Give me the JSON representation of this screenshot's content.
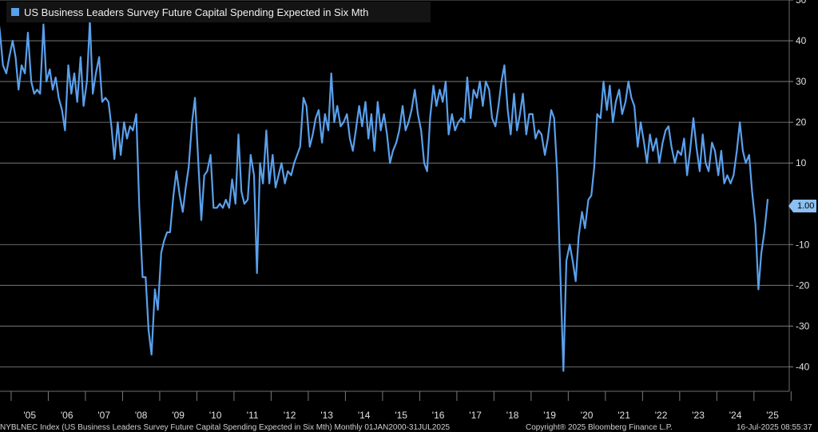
{
  "chart_data": {
    "type": "line",
    "title": "US Business Leaders Survey Future Capital Spending Expected in Six Mth",
    "xlabel": "",
    "ylabel": "",
    "x_tick_labels": [
      "'05",
      "'06",
      "'07",
      "'08",
      "'09",
      "'10",
      "'11",
      "'12",
      "'13",
      "'14",
      "'15",
      "'16",
      "'17",
      "'18",
      "'19",
      "'20",
      "'21",
      "'22",
      "'23",
      "'24",
      "'25"
    ],
    "y_ticks": [
      50,
      40,
      30,
      20,
      10,
      -10,
      -20,
      -30,
      -40
    ],
    "ylim": [
      -46,
      50
    ],
    "xlim": [
      2004.7,
      2025.95
    ],
    "grid": true,
    "legend_position": "top-left",
    "series": [
      {
        "name": "US Business Leaders Survey Future Capital Spending Expected in Six Mth",
        "color": "#5aa0ec",
        "last_value_label": "1.00",
        "points": [
          [
            2004.62,
            48
          ],
          [
            2004.7,
            42
          ],
          [
            2004.78,
            34
          ],
          [
            2004.87,
            32
          ],
          [
            2004.95,
            36
          ],
          [
            2005.04,
            40
          ],
          [
            2005.12,
            36
          ],
          [
            2005.2,
            28
          ],
          [
            2005.28,
            34
          ],
          [
            2005.37,
            32
          ],
          [
            2005.45,
            42
          ],
          [
            2005.54,
            30
          ],
          [
            2005.62,
            27
          ],
          [
            2005.7,
            28
          ],
          [
            2005.78,
            27
          ],
          [
            2005.87,
            44
          ],
          [
            2005.95,
            30
          ],
          [
            2006.04,
            33
          ],
          [
            2006.12,
            28
          ],
          [
            2006.2,
            31
          ],
          [
            2006.28,
            26
          ],
          [
            2006.37,
            23
          ],
          [
            2006.45,
            18
          ],
          [
            2006.54,
            34
          ],
          [
            2006.62,
            27
          ],
          [
            2006.7,
            32
          ],
          [
            2006.78,
            25
          ],
          [
            2006.87,
            36
          ],
          [
            2006.95,
            24
          ],
          [
            2007.04,
            30
          ],
          [
            2007.12,
            45
          ],
          [
            2007.2,
            27
          ],
          [
            2007.28,
            32
          ],
          [
            2007.37,
            36
          ],
          [
            2007.45,
            25
          ],
          [
            2007.54,
            26
          ],
          [
            2007.62,
            25
          ],
          [
            2007.7,
            19
          ],
          [
            2007.78,
            11
          ],
          [
            2007.87,
            20
          ],
          [
            2007.95,
            12
          ],
          [
            2008.04,
            20
          ],
          [
            2008.12,
            16
          ],
          [
            2008.2,
            19
          ],
          [
            2008.28,
            18
          ],
          [
            2008.37,
            22
          ],
          [
            2008.45,
            -1
          ],
          [
            2008.54,
            -18
          ],
          [
            2008.62,
            -18
          ],
          [
            2008.7,
            -31
          ],
          [
            2008.78,
            -37
          ],
          [
            2008.87,
            -21
          ],
          [
            2008.95,
            -26
          ],
          [
            2009.04,
            -12
          ],
          [
            2009.12,
            -9
          ],
          [
            2009.2,
            -7
          ],
          [
            2009.28,
            -7
          ],
          [
            2009.37,
            2
          ],
          [
            2009.45,
            8
          ],
          [
            2009.54,
            2
          ],
          [
            2009.62,
            -2
          ],
          [
            2009.7,
            4
          ],
          [
            2009.78,
            9
          ],
          [
            2009.87,
            20
          ],
          [
            2009.95,
            26
          ],
          [
            2010.04,
            10
          ],
          [
            2010.12,
            -4
          ],
          [
            2010.2,
            7
          ],
          [
            2010.28,
            8
          ],
          [
            2010.37,
            12
          ],
          [
            2010.45,
            -1
          ],
          [
            2010.54,
            -1
          ],
          [
            2010.62,
            0
          ],
          [
            2010.7,
            -1
          ],
          [
            2010.78,
            1
          ],
          [
            2010.87,
            -1
          ],
          [
            2010.95,
            6
          ],
          [
            2011.04,
            0
          ],
          [
            2011.12,
            17
          ],
          [
            2011.2,
            3
          ],
          [
            2011.28,
            0
          ],
          [
            2011.37,
            1
          ],
          [
            2011.45,
            12
          ],
          [
            2011.54,
            7
          ],
          [
            2011.62,
            -17
          ],
          [
            2011.7,
            10
          ],
          [
            2011.78,
            5
          ],
          [
            2011.87,
            18
          ],
          [
            2011.95,
            5
          ],
          [
            2012.04,
            12
          ],
          [
            2012.12,
            4
          ],
          [
            2012.2,
            7
          ],
          [
            2012.28,
            10
          ],
          [
            2012.37,
            5
          ],
          [
            2012.45,
            8
          ],
          [
            2012.54,
            7
          ],
          [
            2012.62,
            10
          ],
          [
            2012.7,
            12
          ],
          [
            2012.78,
            14
          ],
          [
            2012.87,
            26
          ],
          [
            2012.95,
            24
          ],
          [
            2013.04,
            14
          ],
          [
            2013.12,
            17
          ],
          [
            2013.2,
            21
          ],
          [
            2013.28,
            23
          ],
          [
            2013.37,
            15
          ],
          [
            2013.45,
            22
          ],
          [
            2013.54,
            18
          ],
          [
            2013.62,
            32
          ],
          [
            2013.7,
            20
          ],
          [
            2013.78,
            24
          ],
          [
            2013.87,
            19
          ],
          [
            2013.95,
            20
          ],
          [
            2014.04,
            22
          ],
          [
            2014.12,
            16
          ],
          [
            2014.2,
            13
          ],
          [
            2014.28,
            18
          ],
          [
            2014.37,
            24
          ],
          [
            2014.45,
            19
          ],
          [
            2014.54,
            25
          ],
          [
            2014.62,
            16
          ],
          [
            2014.7,
            22
          ],
          [
            2014.78,
            13
          ],
          [
            2014.87,
            25
          ],
          [
            2014.95,
            18
          ],
          [
            2015.04,
            22
          ],
          [
            2015.12,
            17
          ],
          [
            2015.2,
            10
          ],
          [
            2015.28,
            13
          ],
          [
            2015.37,
            15
          ],
          [
            2015.45,
            18
          ],
          [
            2015.54,
            24
          ],
          [
            2015.62,
            18
          ],
          [
            2015.7,
            20
          ],
          [
            2015.78,
            23
          ],
          [
            2015.87,
            28
          ],
          [
            2015.95,
            22
          ],
          [
            2016.04,
            18
          ],
          [
            2016.12,
            10
          ],
          [
            2016.2,
            8
          ],
          [
            2016.28,
            21
          ],
          [
            2016.37,
            29
          ],
          [
            2016.45,
            24
          ],
          [
            2016.54,
            28
          ],
          [
            2016.62,
            25
          ],
          [
            2016.7,
            30
          ],
          [
            2016.78,
            17
          ],
          [
            2016.87,
            22
          ],
          [
            2016.95,
            18
          ],
          [
            2017.04,
            20
          ],
          [
            2017.12,
            21
          ],
          [
            2017.2,
            20
          ],
          [
            2017.28,
            31
          ],
          [
            2017.37,
            21
          ],
          [
            2017.45,
            28
          ],
          [
            2017.54,
            26
          ],
          [
            2017.62,
            30
          ],
          [
            2017.7,
            24
          ],
          [
            2017.78,
            30
          ],
          [
            2017.87,
            28
          ],
          [
            2017.95,
            21
          ],
          [
            2018.04,
            19
          ],
          [
            2018.12,
            24
          ],
          [
            2018.2,
            30
          ],
          [
            2018.28,
            34
          ],
          [
            2018.37,
            23
          ],
          [
            2018.45,
            17
          ],
          [
            2018.54,
            27
          ],
          [
            2018.62,
            18
          ],
          [
            2018.7,
            22
          ],
          [
            2018.78,
            27
          ],
          [
            2018.87,
            17
          ],
          [
            2018.95,
            22
          ],
          [
            2019.04,
            22
          ],
          [
            2019.12,
            16
          ],
          [
            2019.2,
            18
          ],
          [
            2019.28,
            17
          ],
          [
            2019.37,
            12
          ],
          [
            2019.45,
            16
          ],
          [
            2019.54,
            23
          ],
          [
            2019.62,
            21
          ],
          [
            2019.7,
            8
          ],
          [
            2019.78,
            -15
          ],
          [
            2019.87,
            -41
          ],
          [
            2019.95,
            -14
          ],
          [
            2020.04,
            -10
          ],
          [
            2020.12,
            -14
          ],
          [
            2020.2,
            -19
          ],
          [
            2020.28,
            -8
          ],
          [
            2020.37,
            -2
          ],
          [
            2020.45,
            -6
          ],
          [
            2020.54,
            1
          ],
          [
            2020.62,
            2
          ],
          [
            2020.7,
            9
          ],
          [
            2020.78,
            22
          ],
          [
            2020.87,
            21
          ],
          [
            2020.95,
            30
          ],
          [
            2021.04,
            23
          ],
          [
            2021.12,
            29
          ],
          [
            2021.2,
            20
          ],
          [
            2021.28,
            25
          ],
          [
            2021.37,
            28
          ],
          [
            2021.45,
            22
          ],
          [
            2021.54,
            25
          ],
          [
            2021.62,
            30
          ],
          [
            2021.7,
            26
          ],
          [
            2021.78,
            24
          ],
          [
            2021.87,
            14
          ],
          [
            2021.95,
            20
          ],
          [
            2022.04,
            15
          ],
          [
            2022.12,
            10
          ],
          [
            2022.2,
            17
          ],
          [
            2022.28,
            13
          ],
          [
            2022.37,
            16
          ],
          [
            2022.45,
            10
          ],
          [
            2022.54,
            15
          ],
          [
            2022.62,
            18
          ],
          [
            2022.7,
            19
          ],
          [
            2022.78,
            14
          ],
          [
            2022.87,
            10
          ],
          [
            2022.95,
            13
          ],
          [
            2023.04,
            12
          ],
          [
            2023.12,
            16
          ],
          [
            2023.2,
            7
          ],
          [
            2023.28,
            13
          ],
          [
            2023.37,
            21
          ],
          [
            2023.45,
            14
          ],
          [
            2023.54,
            8
          ],
          [
            2023.62,
            17
          ],
          [
            2023.7,
            10
          ],
          [
            2023.78,
            8
          ],
          [
            2023.87,
            15
          ],
          [
            2023.95,
            13
          ],
          [
            2024.04,
            7
          ],
          [
            2024.12,
            13
          ],
          [
            2024.2,
            5
          ],
          [
            2024.28,
            7
          ],
          [
            2024.37,
            5
          ],
          [
            2024.45,
            7
          ],
          [
            2024.54,
            13
          ],
          [
            2024.62,
            20
          ],
          [
            2024.7,
            13
          ],
          [
            2024.78,
            10
          ],
          [
            2024.87,
            12
          ],
          [
            2024.95,
            3
          ],
          [
            2025.04,
            -5
          ],
          [
            2025.12,
            -21
          ],
          [
            2025.2,
            -12
          ],
          [
            2025.28,
            -7
          ],
          [
            2025.37,
            1
          ]
        ]
      }
    ]
  },
  "footer": {
    "left": "NYBLNEC Index (US Business Leaders Survey Future Capital Spending Expected in Six Mth) Monthly 01JAN2000-31JUL2025",
    "center": "Copyright® 2025 Bloomberg Finance L.P.",
    "right": "16-Jul-2025 08:55:37"
  }
}
